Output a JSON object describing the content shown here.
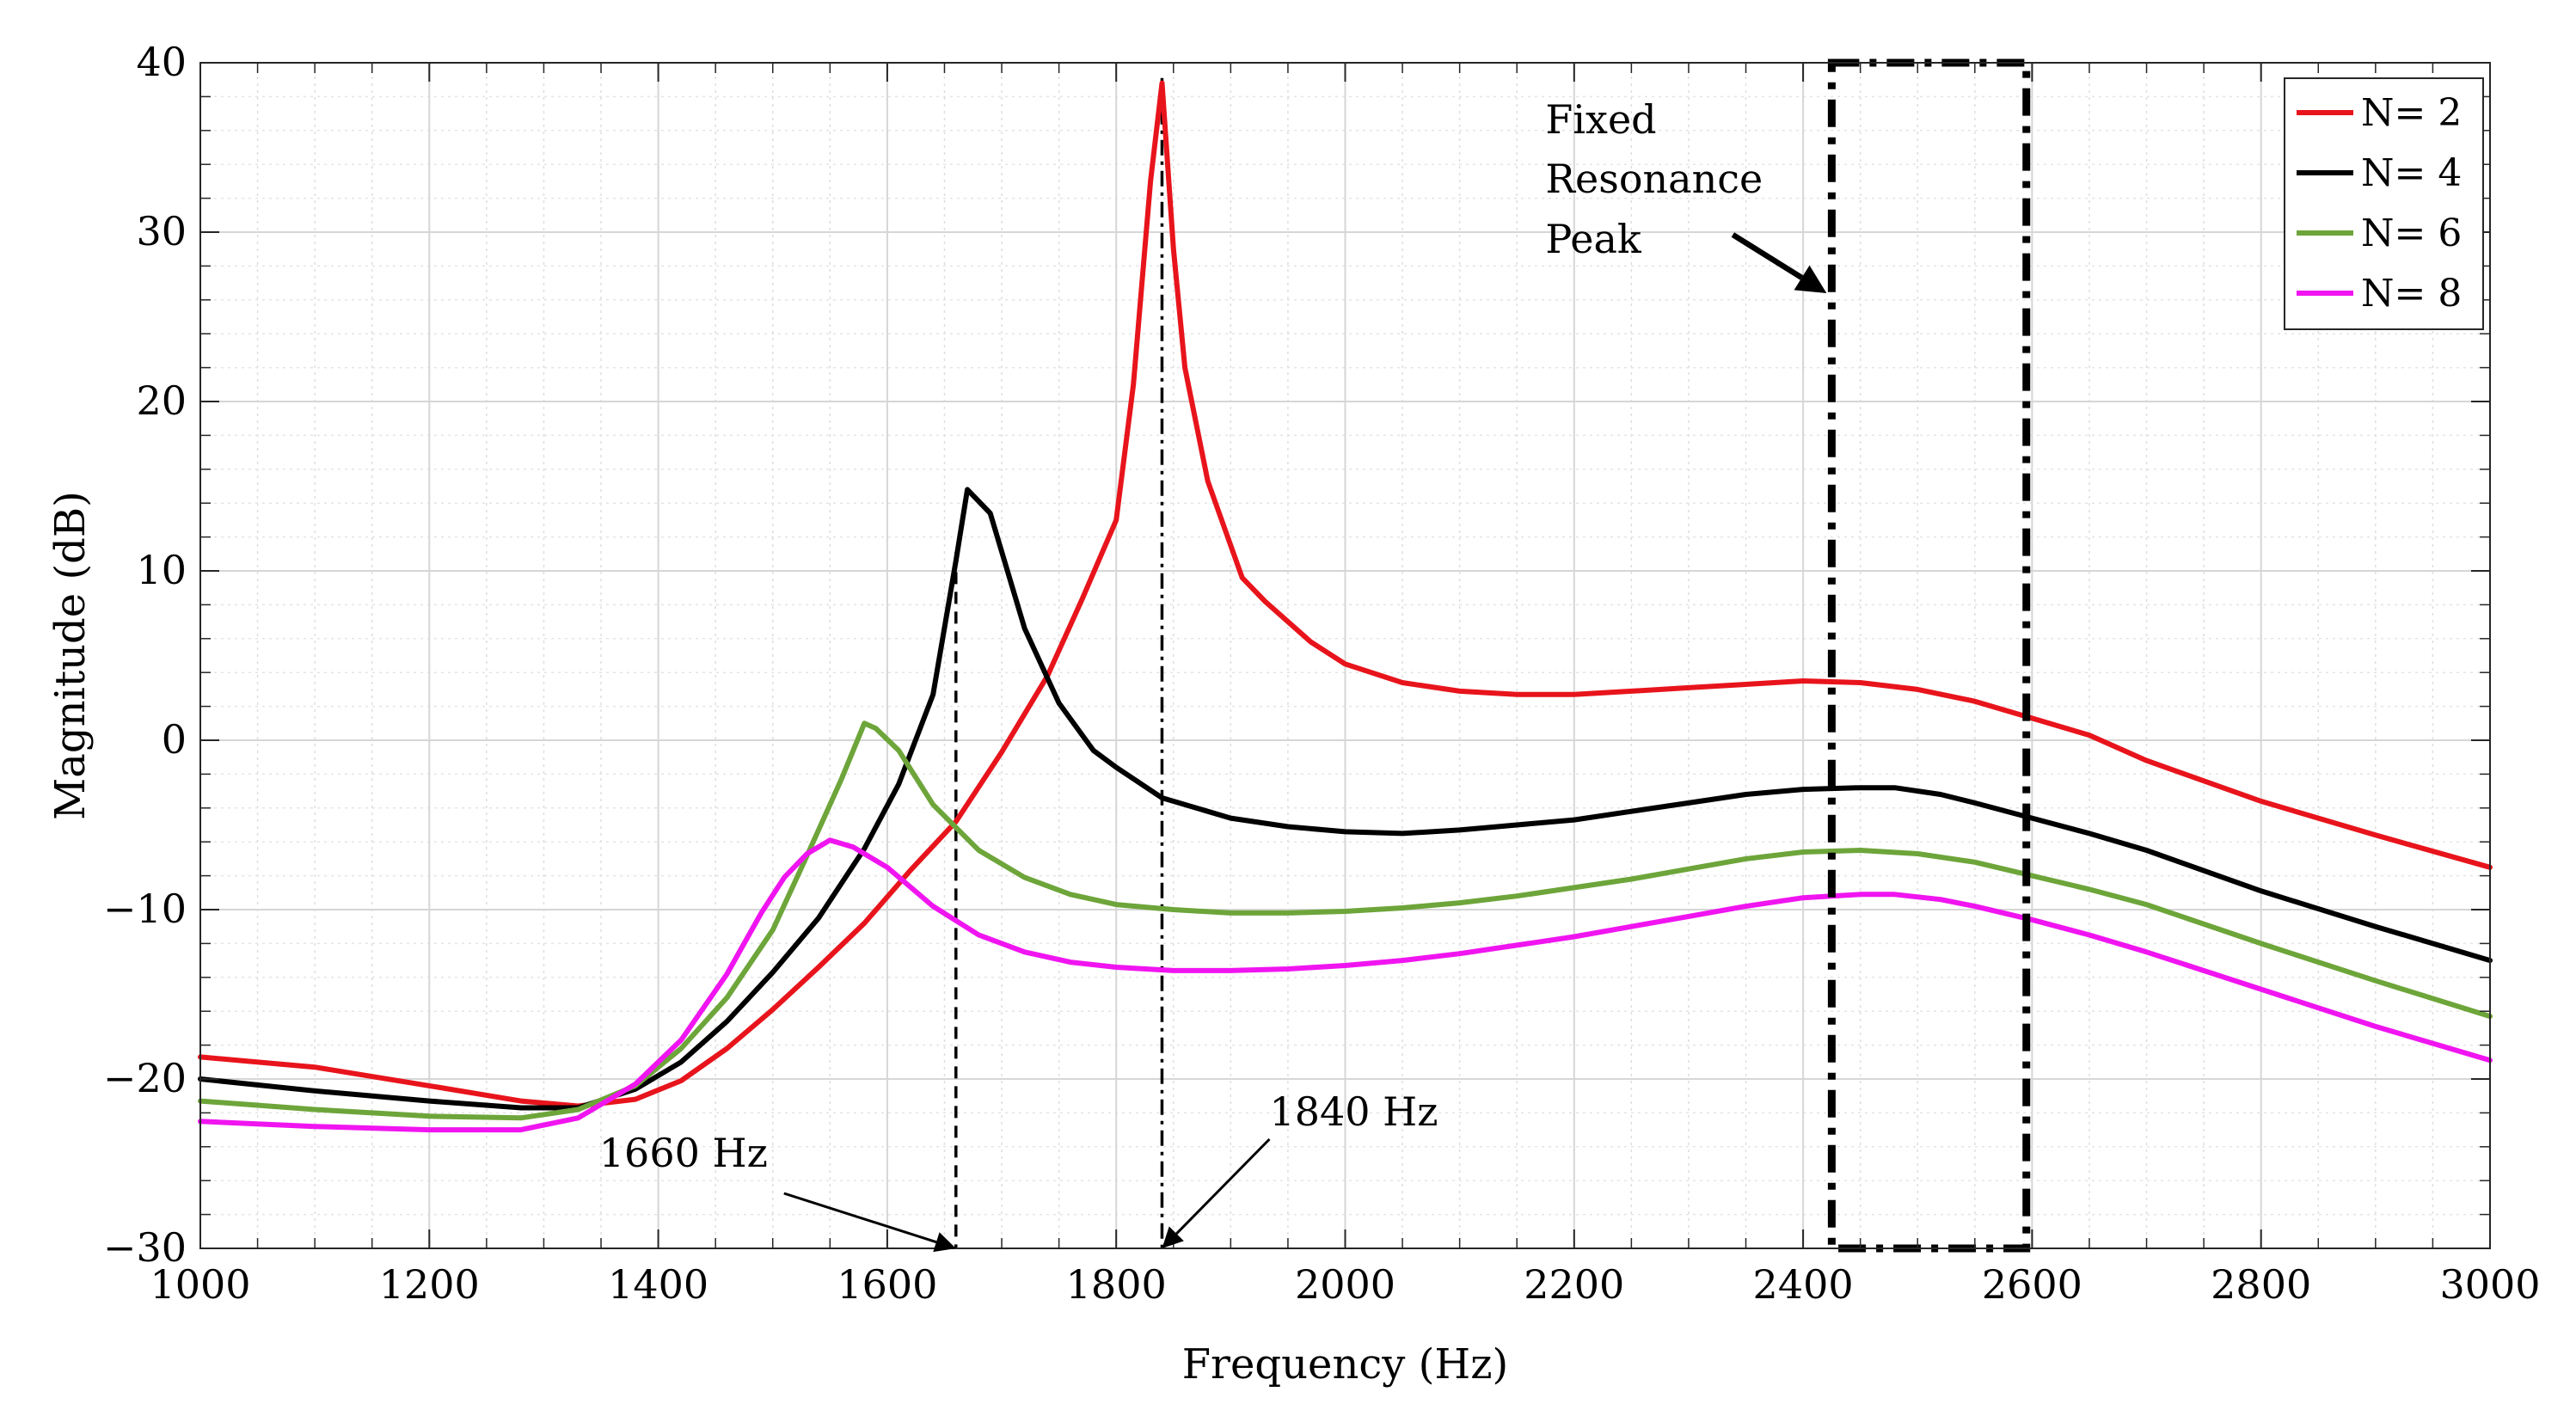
{
  "chart_data": {
    "type": "line",
    "title": "",
    "xlabel": "Frequency (Hz)",
    "ylabel": "Magnitude (dB)",
    "xlim": [
      1000,
      3000
    ],
    "ylim": [
      -30,
      40
    ],
    "xticks": [
      1000,
      1200,
      1400,
      1600,
      1800,
      2000,
      2200,
      2400,
      2600,
      2800,
      3000
    ],
    "yticks": [
      -30,
      -20,
      -10,
      0,
      10,
      20,
      30,
      40
    ],
    "xtick_labels": [
      "1000",
      "1200",
      "1400",
      "1600",
      "1800",
      "2000",
      "2200",
      "2400",
      "2600",
      "2800",
      "3000"
    ],
    "ytick_labels": [
      "−30",
      "−20",
      "−10",
      "0",
      "10",
      "20",
      "30",
      "40"
    ],
    "grid": true,
    "minor_grid": true,
    "legend_position": "top-right",
    "series": [
      {
        "name": "N= 2",
        "color": "#e8141c",
        "x": [
          1000,
          1100,
          1200,
          1280,
          1330,
          1380,
          1420,
          1460,
          1500,
          1540,
          1580,
          1620,
          1660,
          1700,
          1740,
          1770,
          1800,
          1815,
          1830,
          1840,
          1850,
          1860,
          1880,
          1910,
          1930,
          1970,
          2000,
          2050,
          2100,
          2150,
          2200,
          2250,
          2300,
          2350,
          2400,
          2450,
          2500,
          2550,
          2600,
          2650,
          2700,
          2800,
          2900,
          3000
        ],
        "y": [
          -18.7,
          -19.3,
          -20.4,
          -21.3,
          -21.6,
          -21.2,
          -20.1,
          -18.2,
          -15.9,
          -13.4,
          -10.8,
          -7.7,
          -4.8,
          -0.7,
          3.8,
          8.3,
          13.0,
          21.0,
          33.0,
          38.8,
          29.0,
          22.0,
          15.3,
          9.6,
          8.2,
          5.8,
          4.5,
          3.4,
          2.9,
          2.7,
          2.7,
          2.9,
          3.1,
          3.3,
          3.5,
          3.4,
          3.0,
          2.3,
          1.3,
          0.3,
          -1.2,
          -3.6,
          -5.6,
          -7.5
        ]
      },
      {
        "name": "N= 4",
        "color": "#000000",
        "x": [
          1000,
          1100,
          1200,
          1280,
          1330,
          1380,
          1420,
          1460,
          1500,
          1540,
          1580,
          1610,
          1640,
          1660,
          1670,
          1690,
          1720,
          1750,
          1780,
          1800,
          1840,
          1900,
          1950,
          2000,
          2050,
          2100,
          2150,
          2200,
          2250,
          2300,
          2350,
          2400,
          2450,
          2480,
          2520,
          2550,
          2600,
          2650,
          2700,
          2800,
          2900,
          3000
        ],
        "y": [
          -20.0,
          -20.7,
          -21.3,
          -21.7,
          -21.7,
          -20.6,
          -19.0,
          -16.6,
          -13.7,
          -10.5,
          -6.4,
          -2.6,
          2.7,
          10.6,
          14.8,
          13.4,
          6.6,
          2.2,
          -0.6,
          -1.6,
          -3.4,
          -4.6,
          -5.1,
          -5.4,
          -5.5,
          -5.3,
          -5.0,
          -4.7,
          -4.2,
          -3.7,
          -3.2,
          -2.9,
          -2.8,
          -2.8,
          -3.2,
          -3.7,
          -4.6,
          -5.5,
          -6.5,
          -8.9,
          -11.0,
          -13.0
        ]
      },
      {
        "name": "N= 6",
        "color": "#6da53a",
        "x": [
          1000,
          1100,
          1200,
          1280,
          1330,
          1380,
          1420,
          1460,
          1500,
          1530,
          1560,
          1580,
          1590,
          1610,
          1640,
          1680,
          1720,
          1760,
          1800,
          1850,
          1900,
          1950,
          2000,
          2050,
          2100,
          2150,
          2200,
          2250,
          2300,
          2350,
          2400,
          2450,
          2500,
          2550,
          2600,
          2650,
          2700,
          2800,
          2900,
          3000
        ],
        "y": [
          -21.3,
          -21.8,
          -22.2,
          -22.3,
          -21.8,
          -20.4,
          -18.2,
          -15.2,
          -11.2,
          -6.8,
          -2.3,
          1.0,
          0.7,
          -0.6,
          -3.8,
          -6.5,
          -8.1,
          -9.1,
          -9.7,
          -10.0,
          -10.2,
          -10.2,
          -10.1,
          -9.9,
          -9.6,
          -9.2,
          -8.7,
          -8.2,
          -7.6,
          -7.0,
          -6.6,
          -6.5,
          -6.7,
          -7.2,
          -8.0,
          -8.8,
          -9.7,
          -12.0,
          -14.2,
          -16.3
        ]
      },
      {
        "name": "N= 8",
        "color": "#f015f0",
        "x": [
          1000,
          1100,
          1200,
          1280,
          1330,
          1380,
          1420,
          1460,
          1490,
          1510,
          1530,
          1550,
          1570,
          1600,
          1640,
          1680,
          1720,
          1760,
          1800,
          1850,
          1900,
          1950,
          2000,
          2050,
          2100,
          2150,
          2200,
          2250,
          2300,
          2350,
          2400,
          2450,
          2480,
          2520,
          2550,
          2600,
          2650,
          2700,
          2800,
          2900,
          3000
        ],
        "y": [
          -22.5,
          -22.8,
          -23.0,
          -23.0,
          -22.3,
          -20.3,
          -17.7,
          -13.8,
          -10.2,
          -8.1,
          -6.7,
          -5.9,
          -6.3,
          -7.5,
          -9.8,
          -11.5,
          -12.5,
          -13.1,
          -13.4,
          -13.6,
          -13.6,
          -13.5,
          -13.3,
          -13.0,
          -12.6,
          -12.1,
          -11.6,
          -11.0,
          -10.4,
          -9.8,
          -9.3,
          -9.1,
          -9.1,
          -9.4,
          -9.8,
          -10.6,
          -11.5,
          -12.5,
          -14.7,
          -16.9,
          -18.9
        ]
      }
    ],
    "annotations": [
      {
        "id": "label-1660",
        "text": "1660 Hz",
        "marker_x": 1660
      },
      {
        "id": "label-1840",
        "text": "1840 Hz",
        "marker_x": 1840
      },
      {
        "id": "fixed-resonance",
        "lines": [
          "Fixed",
          "Resonance",
          "Peak"
        ],
        "box_x": [
          2425,
          2595
        ],
        "box_y": [
          -30,
          40
        ]
      }
    ]
  }
}
